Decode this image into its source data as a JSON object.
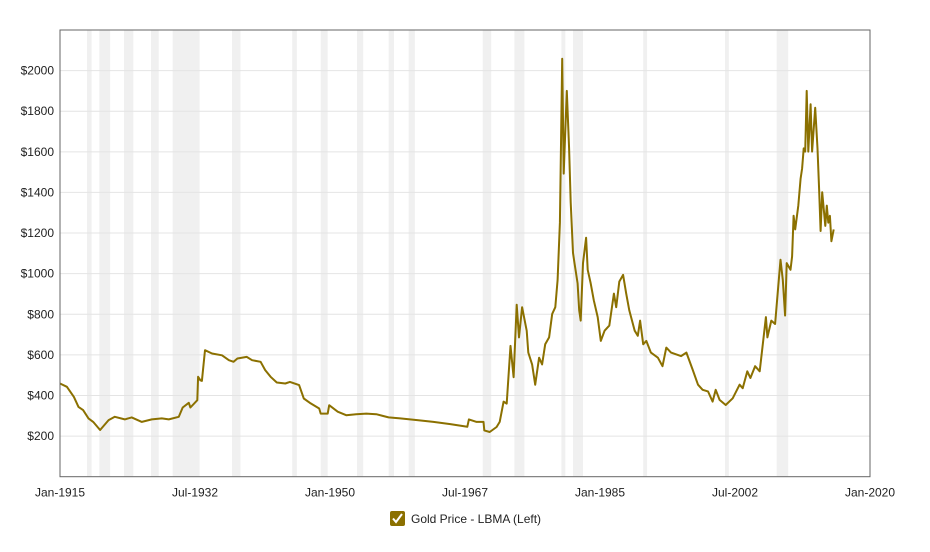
{
  "chart_data": {
    "type": "line",
    "title": "",
    "xlabel": "",
    "ylabel": "",
    "xlim": [
      1915,
      2020
    ],
    "ylim": [
      0,
      2200
    ],
    "grid": true,
    "legend_placement": "bottom",
    "x_ticks": [
      {
        "value": 1915,
        "label": "Jan-1915"
      },
      {
        "value": 1932.5,
        "label": "Jul-1932"
      },
      {
        "value": 1950,
        "label": "Jan-1950"
      },
      {
        "value": 1967.5,
        "label": "Jul-1967"
      },
      {
        "value": 1985,
        "label": "Jan-1985"
      },
      {
        "value": 2002.5,
        "label": "Jul-2002"
      },
      {
        "value": 2020,
        "label": "Jan-2020"
      }
    ],
    "y_ticks": [
      {
        "value": 200,
        "label": "$200"
      },
      {
        "value": 400,
        "label": "$400"
      },
      {
        "value": 600,
        "label": "$600"
      },
      {
        "value": 800,
        "label": "$800"
      },
      {
        "value": 1000,
        "label": "$1000"
      },
      {
        "value": 1200,
        "label": "$1200"
      },
      {
        "value": 1400,
        "label": "$1400"
      },
      {
        "value": 1600,
        "label": "$1600"
      },
      {
        "value": 1800,
        "label": "$1800"
      },
      {
        "value": 2000,
        "label": "$2000"
      }
    ],
    "shaded_periods": [
      [
        1918.5,
        1919.1
      ],
      [
        1920.1,
        1921.5
      ],
      [
        1923.3,
        1924.5
      ],
      [
        1926.8,
        1927.8
      ],
      [
        1929.6,
        1933.1
      ],
      [
        1937.3,
        1938.4
      ],
      [
        1945.1,
        1945.7
      ],
      [
        1948.8,
        1949.7
      ],
      [
        1953.5,
        1954.3
      ],
      [
        1957.6,
        1958.3
      ],
      [
        1960.2,
        1961.0
      ],
      [
        1969.8,
        1970.9
      ],
      [
        1973.9,
        1975.2
      ],
      [
        1980.0,
        1980.5
      ],
      [
        1981.5,
        1982.8
      ],
      [
        1990.6,
        1991.1
      ],
      [
        2001.2,
        2001.7
      ],
      [
        2007.9,
        2009.4
      ]
    ],
    "series": [
      {
        "name": "Gold Price - LBMA (Left)",
        "color": "#8b7000",
        "points": [
          [
            1915.0,
            459
          ],
          [
            1915.9,
            443
          ],
          [
            1916.8,
            393
          ],
          [
            1917.4,
            344
          ],
          [
            1918.0,
            328
          ],
          [
            1918.7,
            287
          ],
          [
            1919.3,
            270
          ],
          [
            1920.2,
            230
          ],
          [
            1921.3,
            279
          ],
          [
            1922.1,
            295
          ],
          [
            1923.4,
            282
          ],
          [
            1924.3,
            292
          ],
          [
            1925.6,
            270
          ],
          [
            1926.9,
            282
          ],
          [
            1928.2,
            287
          ],
          [
            1929.1,
            282
          ],
          [
            1930.4,
            295
          ],
          [
            1930.9,
            341
          ],
          [
            1931.7,
            364
          ],
          [
            1931.9,
            341
          ],
          [
            1932.8,
            377
          ],
          [
            1932.9,
            492
          ],
          [
            1933.2,
            475
          ],
          [
            1933.4,
            472
          ],
          [
            1933.8,
            623
          ],
          [
            1934.7,
            607
          ],
          [
            1936.0,
            598
          ],
          [
            1936.9,
            574
          ],
          [
            1937.5,
            566
          ],
          [
            1938.0,
            582
          ],
          [
            1939.2,
            590
          ],
          [
            1939.9,
            574
          ],
          [
            1941.0,
            566
          ],
          [
            1941.6,
            525
          ],
          [
            1942.3,
            492
          ],
          [
            1943.1,
            464
          ],
          [
            1944.2,
            459
          ],
          [
            1944.8,
            467
          ],
          [
            1946.0,
            451
          ],
          [
            1946.6,
            385
          ],
          [
            1947.5,
            361
          ],
          [
            1948.6,
            336
          ],
          [
            1948.8,
            311
          ],
          [
            1949.7,
            311
          ],
          [
            1949.9,
            352
          ],
          [
            1951.0,
            320
          ],
          [
            1952.1,
            303
          ],
          [
            1953.4,
            308
          ],
          [
            1954.7,
            311
          ],
          [
            1956.0,
            308
          ],
          [
            1957.6,
            292
          ],
          [
            1959.1,
            287
          ],
          [
            1961.3,
            279
          ],
          [
            1963.4,
            270
          ],
          [
            1965.6,
            259
          ],
          [
            1967.8,
            246
          ],
          [
            1968.0,
            282
          ],
          [
            1969.0,
            270
          ],
          [
            1969.9,
            270
          ],
          [
            1970.0,
            228
          ],
          [
            1970.7,
            220
          ],
          [
            1971.6,
            245
          ],
          [
            1972.0,
            270
          ],
          [
            1972.5,
            370
          ],
          [
            1972.9,
            360
          ],
          [
            1973.4,
            644
          ],
          [
            1973.8,
            490
          ],
          [
            1974.2,
            847
          ],
          [
            1974.5,
            686
          ],
          [
            1974.9,
            835
          ],
          [
            1975.5,
            719
          ],
          [
            1975.7,
            611
          ],
          [
            1976.2,
            553
          ],
          [
            1976.6,
            453
          ],
          [
            1977.1,
            586
          ],
          [
            1977.5,
            553
          ],
          [
            1977.9,
            652
          ],
          [
            1978.4,
            686
          ],
          [
            1978.8,
            802
          ],
          [
            1979.2,
            835
          ],
          [
            1979.5,
            969
          ],
          [
            1979.8,
            1251
          ],
          [
            1980.1,
            2058
          ],
          [
            1980.3,
            1493
          ],
          [
            1980.7,
            1900
          ],
          [
            1981.0,
            1617
          ],
          [
            1981.2,
            1351
          ],
          [
            1981.5,
            1102
          ],
          [
            1981.7,
            1052
          ],
          [
            1982.1,
            952
          ],
          [
            1982.3,
            819
          ],
          [
            1982.5,
            769
          ],
          [
            1982.8,
            1052
          ],
          [
            1983.2,
            1177
          ],
          [
            1983.4,
            1019
          ],
          [
            1983.8,
            952
          ],
          [
            1984.2,
            869
          ],
          [
            1984.7,
            786
          ],
          [
            1985.1,
            669
          ],
          [
            1985.6,
            719
          ],
          [
            1986.2,
            744
          ],
          [
            1986.8,
            902
          ],
          [
            1987.1,
            835
          ],
          [
            1987.5,
            961
          ],
          [
            1988.0,
            994
          ],
          [
            1988.4,
            902
          ],
          [
            1988.8,
            819
          ],
          [
            1989.5,
            719
          ],
          [
            1989.9,
            694
          ],
          [
            1990.2,
            769
          ],
          [
            1990.6,
            652
          ],
          [
            1991.0,
            669
          ],
          [
            1991.6,
            611
          ],
          [
            1992.5,
            586
          ],
          [
            1993.1,
            544
          ],
          [
            1993.6,
            636
          ],
          [
            1994.2,
            611
          ],
          [
            1995.5,
            594
          ],
          [
            1996.2,
            611
          ],
          [
            1997.0,
            528
          ],
          [
            1997.7,
            453
          ],
          [
            1998.3,
            428
          ],
          [
            1999.0,
            420
          ],
          [
            1999.6,
            370
          ],
          [
            2000.0,
            428
          ],
          [
            2000.5,
            378
          ],
          [
            2001.3,
            353
          ],
          [
            2002.2,
            386
          ],
          [
            2003.1,
            453
          ],
          [
            2003.5,
            436
          ],
          [
            2004.1,
            519
          ],
          [
            2004.5,
            486
          ],
          [
            2005.1,
            544
          ],
          [
            2005.7,
            519
          ],
          [
            2006.1,
            652
          ],
          [
            2006.5,
            786
          ],
          [
            2006.7,
            686
          ],
          [
            2007.2,
            769
          ],
          [
            2007.7,
            752
          ],
          [
            2008.1,
            935
          ],
          [
            2008.4,
            1068
          ],
          [
            2008.7,
            969
          ],
          [
            2009.0,
            794
          ],
          [
            2009.2,
            1052
          ],
          [
            2009.7,
            1019
          ],
          [
            2009.9,
            1085
          ],
          [
            2010.1,
            1285
          ],
          [
            2010.3,
            1218
          ],
          [
            2010.7,
            1335
          ],
          [
            2011.0,
            1468
          ],
          [
            2011.2,
            1518
          ],
          [
            2011.4,
            1617
          ],
          [
            2011.6,
            1601
          ],
          [
            2011.8,
            1900
          ],
          [
            2012.0,
            1601
          ],
          [
            2012.3,
            1834
          ],
          [
            2012.5,
            1601
          ],
          [
            2012.9,
            1817
          ],
          [
            2013.2,
            1617
          ],
          [
            2013.4,
            1418
          ],
          [
            2013.6,
            1210
          ],
          [
            2013.8,
            1401
          ],
          [
            2014.2,
            1235
          ],
          [
            2014.4,
            1335
          ],
          [
            2014.6,
            1251
          ],
          [
            2014.8,
            1285
          ],
          [
            2015.0,
            1160
          ],
          [
            2015.3,
            1218
          ]
        ]
      }
    ]
  },
  "colors": {
    "line": "#8b7000",
    "shade": "#f0f0f0",
    "grid": "#e4e4e4",
    "axis": "#666666"
  },
  "legend": {
    "label": "Gold Price - LBMA (Left)",
    "checked": true,
    "icon": "checkmark-icon"
  }
}
